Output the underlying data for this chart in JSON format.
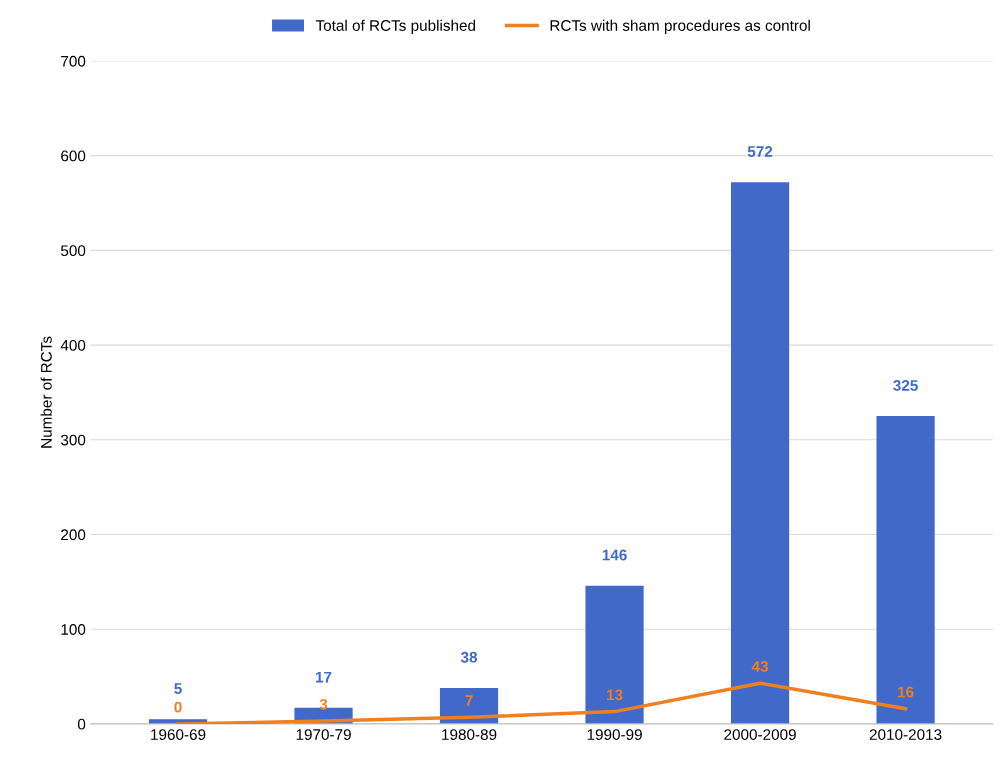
{
  "chart_data": {
    "type": "bar",
    "ylabel": "Number of RCTs",
    "categories": [
      "1960-69",
      "1970-79",
      "1980-89",
      "1990-99",
      "2000-2009",
      "2010-2013"
    ],
    "series": [
      {
        "name": "Total of RCTs published",
        "color": "#4169c9",
        "values": [
          5,
          17,
          38,
          146,
          572,
          325
        ]
      },
      {
        "name": "RCTs with sham procedures as control",
        "type": "line",
        "color": "#f07f1e",
        "values": [
          0,
          3,
          7,
          13,
          43,
          16
        ]
      }
    ],
    "ylim": [
      0,
      700
    ],
    "yticks": [
      0,
      100,
      200,
      300,
      400,
      500,
      600,
      700
    ],
    "grid": "y",
    "legend": "top",
    "data_labels": true
  }
}
